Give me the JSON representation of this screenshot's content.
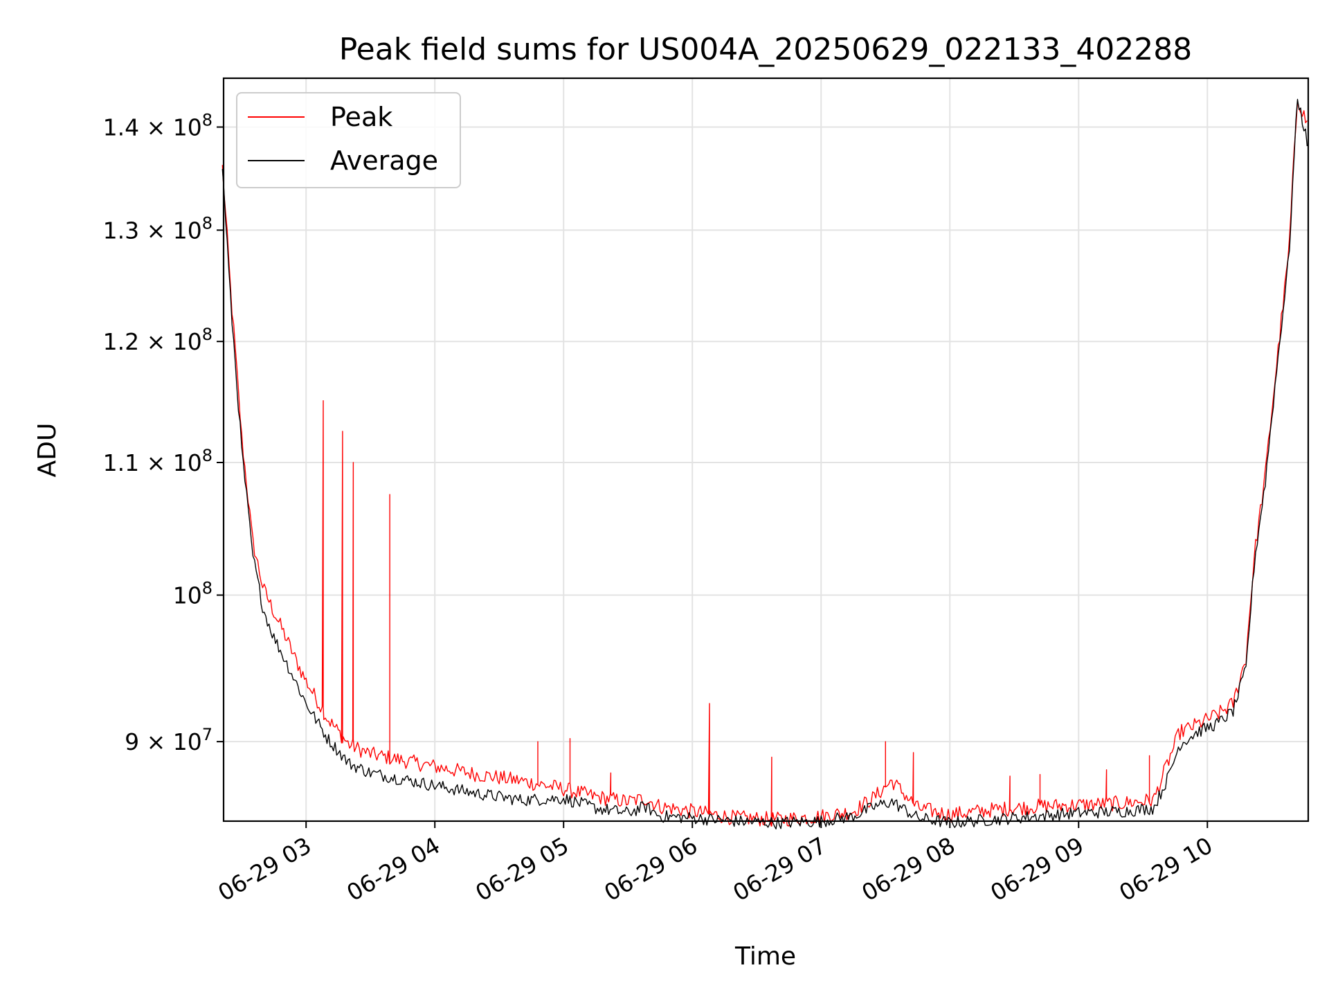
{
  "chart_data": {
    "type": "line",
    "title": "Peak field sums for US004A_20250629_022133_402288",
    "xlabel": "Time",
    "ylabel": "ADU",
    "yscale": "log",
    "xlim": [
      "2025-06-29T02:21:33",
      "2025-06-29T10:47:00"
    ],
    "ylim": [
      85000000,
      145000000
    ],
    "grid": true,
    "legend_position": "top-left",
    "x_ticks": [
      "06-29 03",
      "06-29 04",
      "06-29 05",
      "06-29 06",
      "06-29 07",
      "06-29 08",
      "06-29 09",
      "06-29 10"
    ],
    "x_tick_values": [
      "2025-06-29T03:00",
      "2025-06-29T04:00",
      "2025-06-29T05:00",
      "2025-06-29T06:00",
      "2025-06-29T07:00",
      "2025-06-29T08:00",
      "2025-06-29T09:00",
      "2025-06-29T10:00"
    ],
    "y_ticks": [
      {
        "value": 90000000,
        "mantissa": "9",
        "exponent": "7"
      },
      {
        "value": 100000000,
        "mantissa": "",
        "exponent": "8"
      },
      {
        "value": 110000000,
        "mantissa": "1.1",
        "exponent": "8"
      },
      {
        "value": 120000000,
        "mantissa": "1.2",
        "exponent": "8"
      },
      {
        "value": 130000000,
        "mantissa": "1.3",
        "exponent": "8"
      },
      {
        "value": 140000000,
        "mantissa": "1.4",
        "exponent": "8"
      }
    ],
    "x": [
      "2025-06-29T02:21",
      "2025-06-29T02:25",
      "2025-06-29T02:30",
      "2025-06-29T02:35",
      "2025-06-29T02:40",
      "2025-06-29T02:45",
      "2025-06-29T02:50",
      "2025-06-29T02:55",
      "2025-06-29T03:00",
      "2025-06-29T03:10",
      "2025-06-29T03:20",
      "2025-06-29T03:30",
      "2025-06-29T03:45",
      "2025-06-29T04:00",
      "2025-06-29T04:20",
      "2025-06-29T04:40",
      "2025-06-29T05:00",
      "2025-06-29T05:15",
      "2025-06-29T05:30",
      "2025-06-29T05:38",
      "2025-06-29T05:45",
      "2025-06-29T06:00",
      "2025-06-29T06:20",
      "2025-06-29T06:40",
      "2025-06-29T07:00",
      "2025-06-29T07:15",
      "2025-06-29T07:25",
      "2025-06-29T07:33",
      "2025-06-29T07:45",
      "2025-06-29T08:00",
      "2025-06-29T08:20",
      "2025-06-29T08:40",
      "2025-06-29T09:00",
      "2025-06-29T09:20",
      "2025-06-29T09:35",
      "2025-06-29T09:42",
      "2025-06-29T09:47",
      "2025-06-29T09:55",
      "2025-06-29T10:05",
      "2025-06-29T10:12",
      "2025-06-29T10:18",
      "2025-06-29T10:22",
      "2025-06-29T10:27",
      "2025-06-29T10:32",
      "2025-06-29T10:38",
      "2025-06-29T10:42",
      "2025-06-29T10:47"
    ],
    "series": [
      {
        "name": "Peak",
        "color": "#ff0000",
        "values": [
          136000000,
          124000000,
          112000000,
          104000000,
          100500000,
          98800000,
          97200000,
          95500000,
          94000000,
          91500000,
          89800000,
          89200000,
          88800000,
          88400000,
          87900000,
          87500000,
          87000000,
          86500000,
          86200000,
          86400000,
          85900000,
          85600000,
          85200000,
          85100000,
          85300000,
          85600000,
          86500000,
          87500000,
          85800000,
          85400000,
          85700000,
          85900000,
          86000000,
          86100000,
          86300000,
          88800000,
          90600000,
          91100000,
          91800000,
          92500000,
          95600000,
          103000000,
          109000000,
          117500000,
          128000000,
          143000000,
          140000000
        ],
        "spikes": [
          {
            "x": "2025-06-29T03:08",
            "y": 115000000
          },
          {
            "x": "2025-06-29T03:17",
            "y": 112500000
          },
          {
            "x": "2025-06-29T03:22",
            "y": 110000000
          },
          {
            "x": "2025-06-29T03:39",
            "y": 107500000
          },
          {
            "x": "2025-06-29T04:48",
            "y": 90000000
          },
          {
            "x": "2025-06-29T05:03",
            "y": 90200000
          },
          {
            "x": "2025-06-29T05:22",
            "y": 88000000
          },
          {
            "x": "2025-06-29T06:08",
            "y": 92500000
          },
          {
            "x": "2025-06-29T06:37",
            "y": 89000000
          },
          {
            "x": "2025-06-29T07:30",
            "y": 90000000
          },
          {
            "x": "2025-06-29T07:43",
            "y": 89300000
          },
          {
            "x": "2025-06-29T08:28",
            "y": 87800000
          },
          {
            "x": "2025-06-29T08:42",
            "y": 87900000
          },
          {
            "x": "2025-06-29T09:13",
            "y": 88200000
          },
          {
            "x": "2025-06-29T09:33",
            "y": 89100000
          }
        ]
      },
      {
        "name": "Average",
        "color": "#000000",
        "values": [
          136000000,
          123000000,
          111000000,
          103000000,
          99000000,
          97000000,
          95500000,
          94000000,
          92500000,
          90200000,
          88600000,
          88000000,
          87600000,
          87200000,
          86700000,
          86300000,
          86400000,
          85800000,
          85500000,
          85900000,
          85300000,
          85200000,
          85000000,
          84900000,
          85000000,
          85300000,
          85900000,
          86200000,
          85200000,
          84900000,
          85100000,
          85300000,
          85500000,
          85600000,
          85800000,
          87800000,
          89800000,
          90600000,
          91200000,
          92000000,
          94800000,
          102500000,
          108500000,
          117000000,
          127500000,
          143000000,
          138000000
        ]
      }
    ]
  }
}
